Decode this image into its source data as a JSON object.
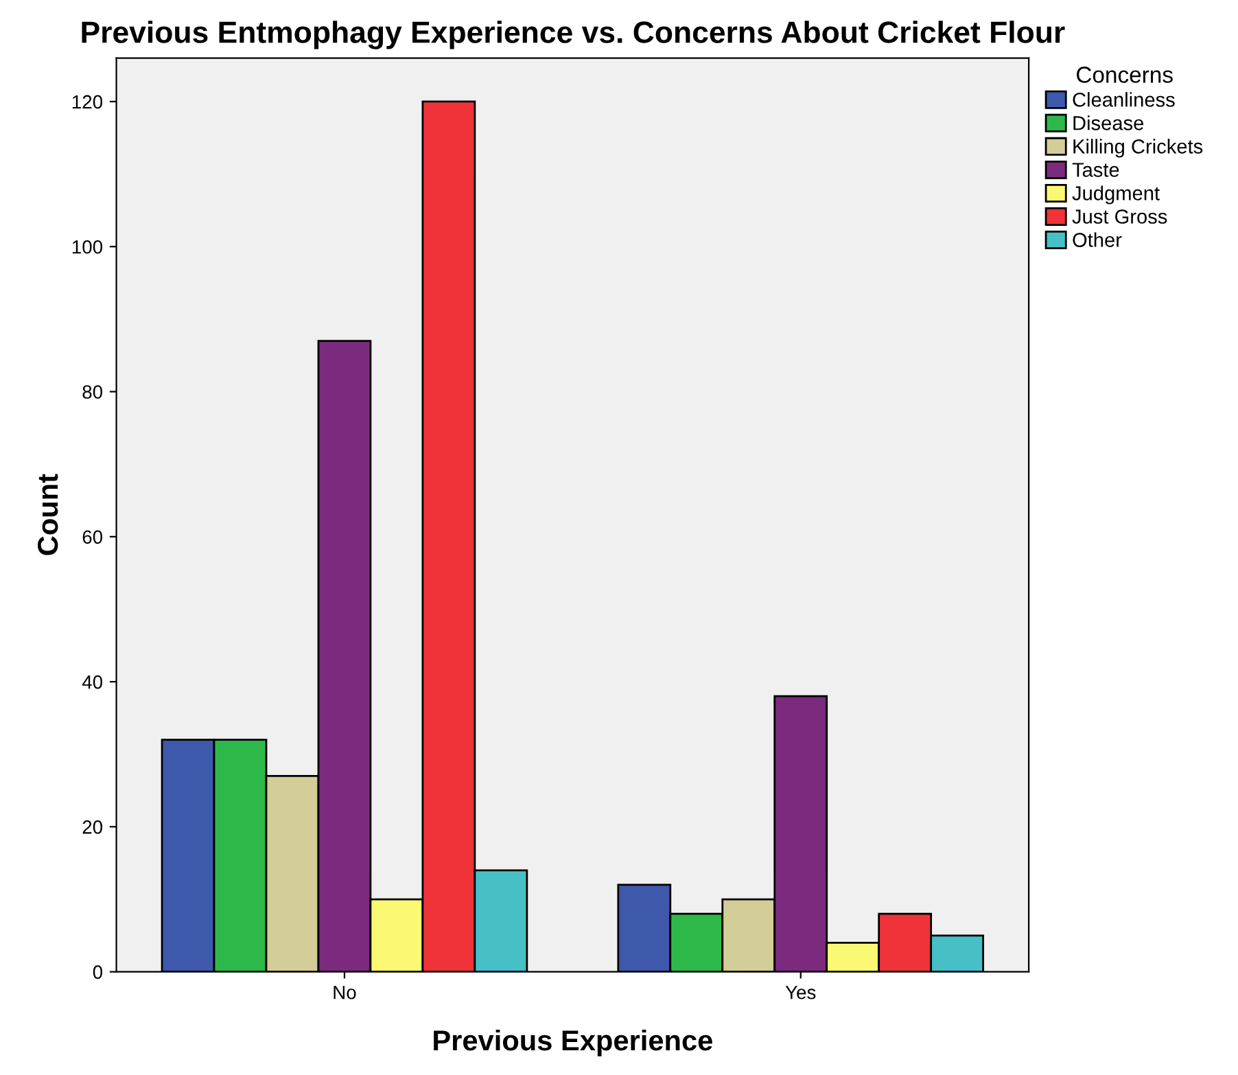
{
  "chart_data": {
    "type": "bar",
    "title": "Previous Entmophagy Experience vs. Concerns About Cricket Flour",
    "xlabel": "Previous Experience",
    "ylabel": "Count",
    "legend_title": "Concerns",
    "categories": [
      "No",
      "Yes"
    ],
    "series": [
      {
        "name": "Cleanliness",
        "color": "#3e58ac",
        "values": [
          32,
          12
        ]
      },
      {
        "name": "Disease",
        "color": "#2db84a",
        "values": [
          32,
          8
        ]
      },
      {
        "name": "Killing Crickets",
        "color": "#d3cd97",
        "values": [
          27,
          10
        ]
      },
      {
        "name": "Taste",
        "color": "#7b2a7e",
        "values": [
          87,
          38
        ]
      },
      {
        "name": "Judgment",
        "color": "#fbf873",
        "values": [
          10,
          4
        ]
      },
      {
        "name": "Just Gross",
        "color": "#ef3338",
        "values": [
          120,
          8
        ]
      },
      {
        "name": "Other",
        "color": "#46c0c6",
        "values": [
          14,
          5
        ]
      }
    ],
    "ylim": [
      0,
      126
    ],
    "yticks": [
      0,
      20,
      40,
      60,
      80,
      100,
      120
    ],
    "grid": false,
    "legend": "top right"
  }
}
